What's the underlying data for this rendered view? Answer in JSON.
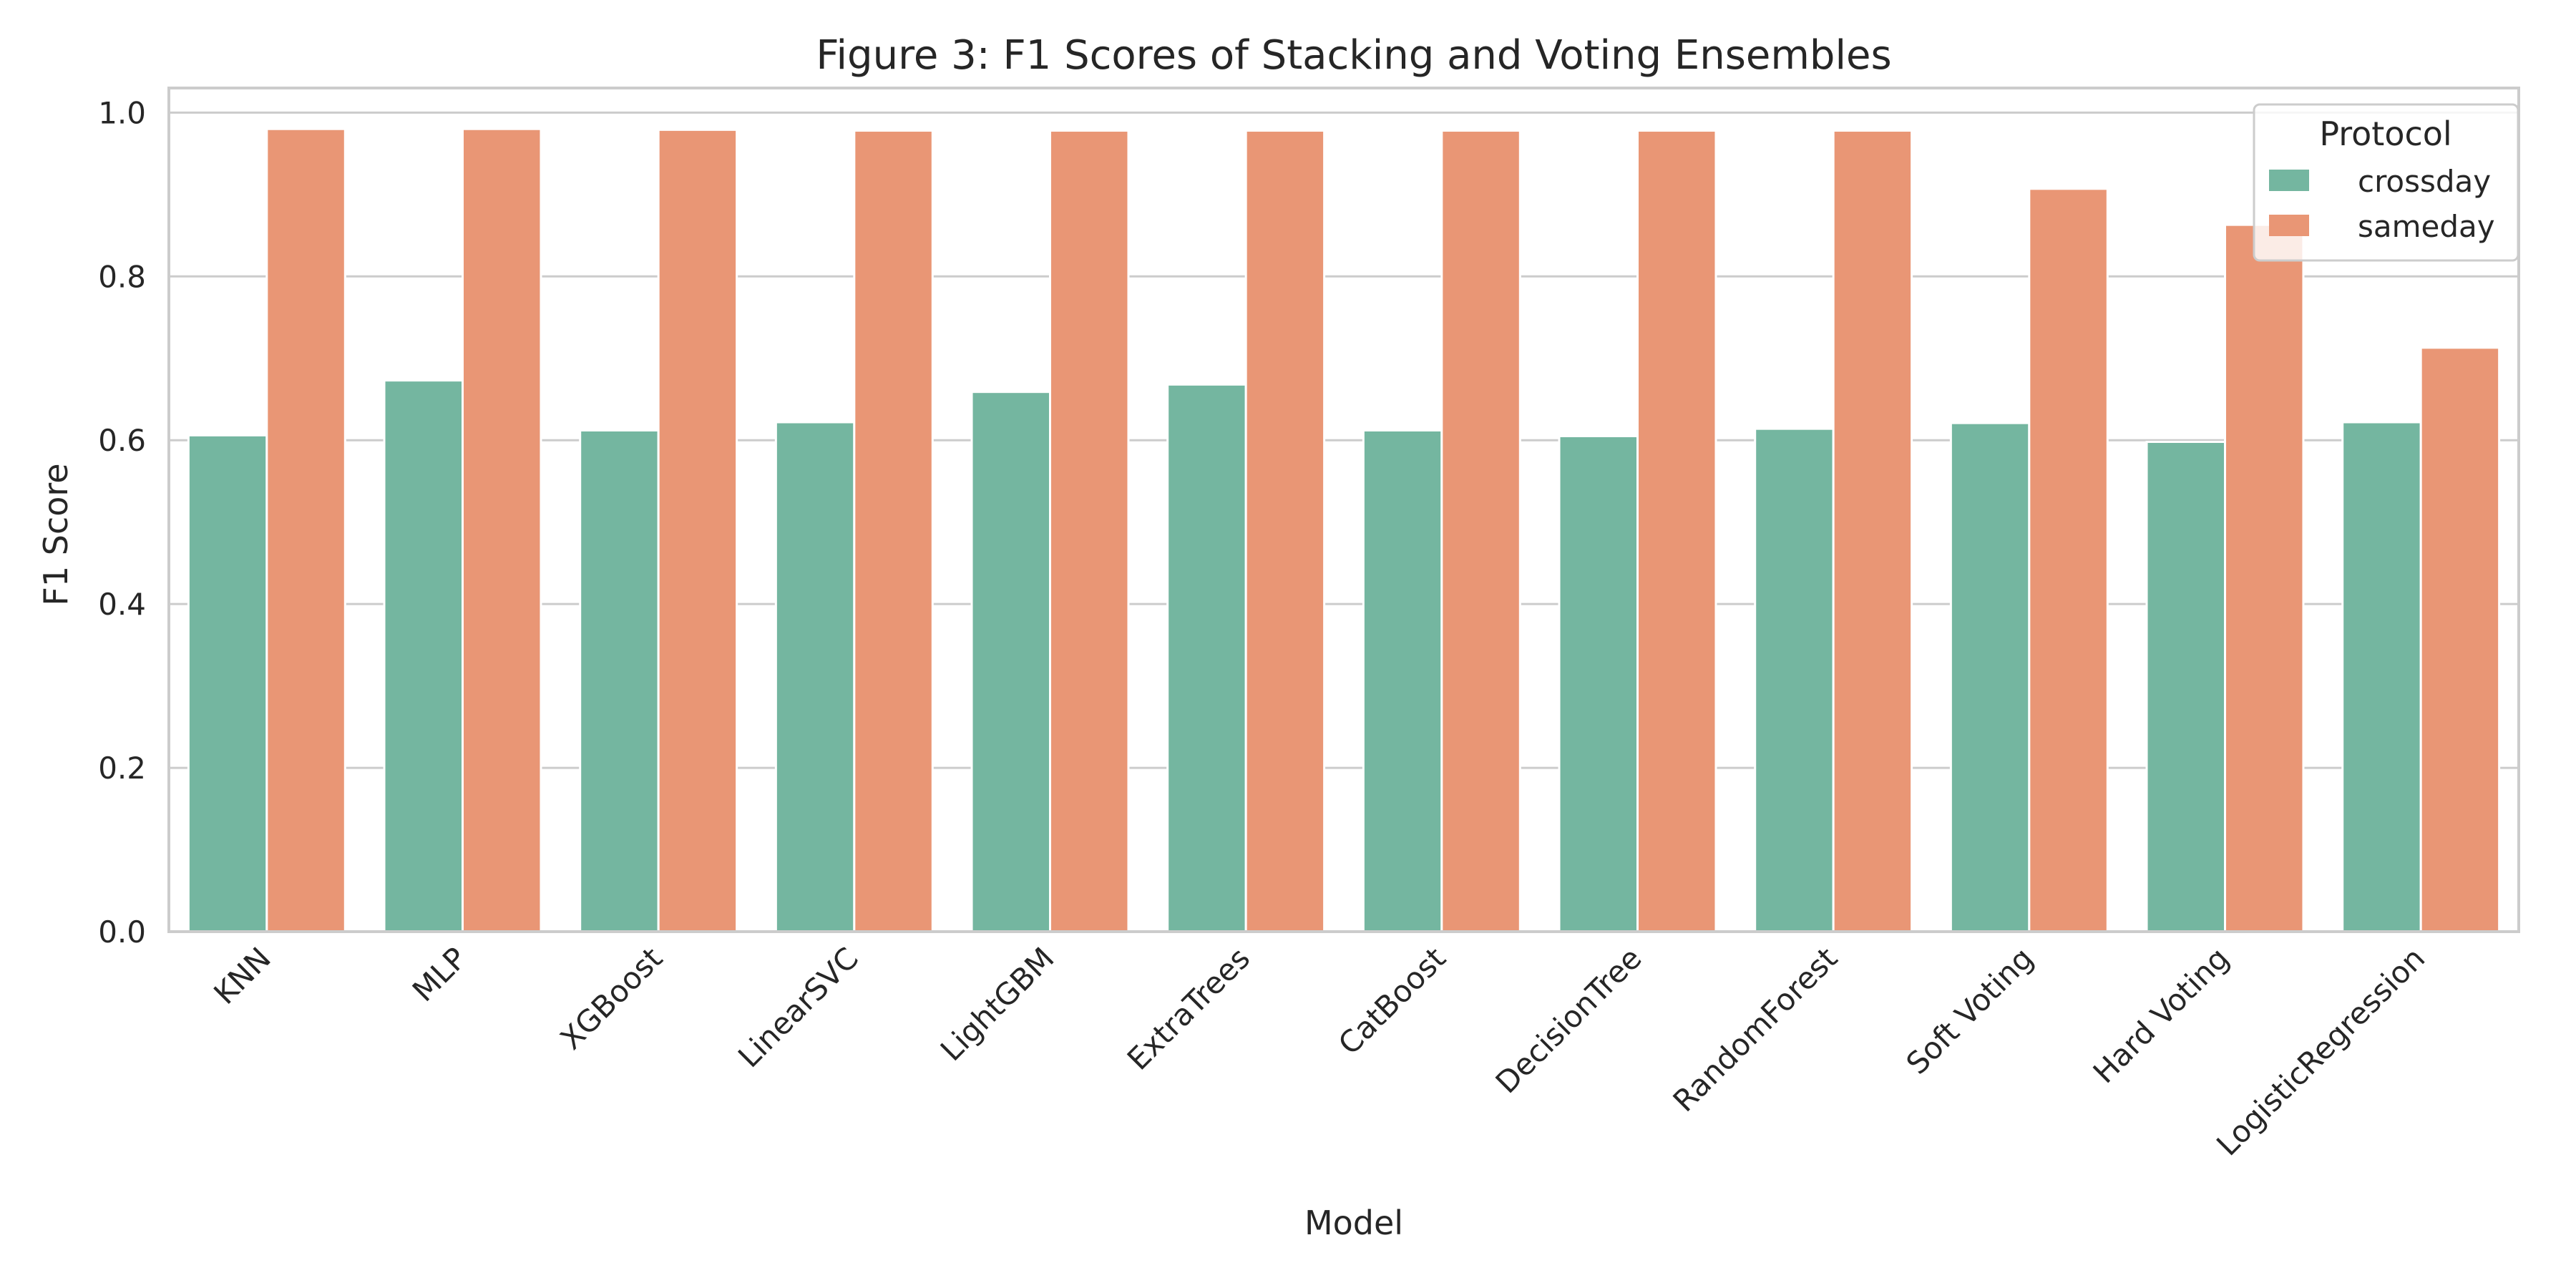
{
  "chart_data": {
    "type": "bar",
    "title": "Figure 3: F1 Scores of Stacking and Voting Ensembles",
    "xlabel": "Model",
    "ylabel": "F1 Score",
    "ylim": [
      0,
      1.03
    ],
    "yticks": [
      "0.0",
      "0.2",
      "0.4",
      "0.6",
      "0.8",
      "1.0"
    ],
    "grid": "horizontal",
    "legend": {
      "title": "Protocol",
      "placement": "top-right"
    },
    "categories": [
      "KNN",
      "MLP",
      "XGBoost",
      "LinearSVC",
      "LightGBM",
      "ExtraTrees",
      "CatBoost",
      "DecisionTree",
      "RandomForest",
      "Soft Voting",
      "Hard Voting",
      "LogisticRegression"
    ],
    "series": [
      {
        "name": "crossday",
        "color": "#74b6a0",
        "values": [
          0.606,
          0.673,
          0.612,
          0.622,
          0.659,
          0.668,
          0.612,
          0.605,
          0.614,
          0.621,
          0.598,
          0.622
        ]
      },
      {
        "name": "sameday",
        "color": "#e99675",
        "values": [
          0.98,
          0.98,
          0.979,
          0.978,
          0.978,
          0.978,
          0.978,
          0.978,
          0.978,
          0.907,
          0.863,
          0.713
        ]
      }
    ]
  },
  "colors": {
    "grid": "#cccccc",
    "spine": "#cccccc",
    "text": "#262626",
    "background": "#ffffff"
  }
}
